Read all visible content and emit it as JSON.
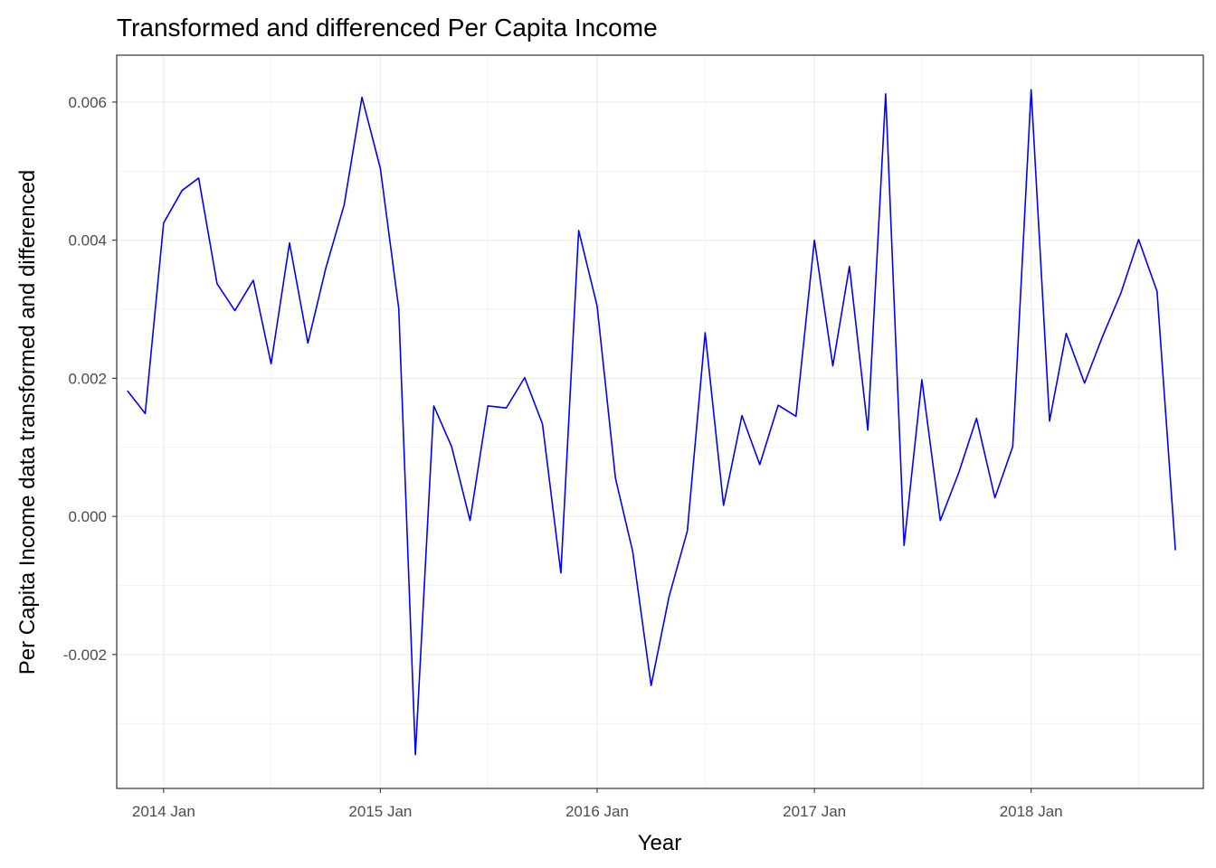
{
  "chart_data": {
    "type": "line",
    "title": "Transformed and differenced Per Capita Income",
    "xlabel": "Year",
    "ylabel": "Per Capita Income data transformed and differenced",
    "x_ticks": [
      "2014 Jan",
      "2015 Jan",
      "2016 Jan",
      "2017 Jan",
      "2018 Jan"
    ],
    "y_ticks": [
      "-0.002",
      "0.000",
      "0.002",
      "0.004",
      "0.006"
    ],
    "xlim": [
      "2013-10-14",
      "2018-10-18"
    ],
    "ylim": [
      -0.00394,
      0.00668
    ],
    "grid": true,
    "legend": "none",
    "line_color": "#0000ff",
    "series": [
      {
        "x": [
          "2013-11",
          "2013-12",
          "2014-01",
          "2014-02",
          "2014-03",
          "2014-04",
          "2014-05",
          "2014-06",
          "2014-07",
          "2014-08",
          "2014-09",
          "2014-10",
          "2014-11",
          "2014-12",
          "2015-01",
          "2015-02",
          "2015-03",
          "2015-04",
          "2015-05",
          "2015-06",
          "2015-07",
          "2015-08",
          "2015-09",
          "2015-10",
          "2015-11",
          "2015-12",
          "2016-01",
          "2016-02",
          "2016-03",
          "2016-04",
          "2016-05",
          "2016-06",
          "2016-07",
          "2016-08",
          "2016-09",
          "2016-10",
          "2016-11",
          "2016-12",
          "2017-01",
          "2017-02",
          "2017-03",
          "2017-04",
          "2017-05",
          "2017-06",
          "2017-07",
          "2017-08",
          "2017-09",
          "2017-10",
          "2017-11",
          "2017-12",
          "2018-01",
          "2018-02",
          "2018-03",
          "2018-04",
          "2018-05",
          "2018-06",
          "2018-07",
          "2018-08",
          "2018-09"
        ],
        "values": [
          0.00182,
          0.00149,
          0.00425,
          0.00472,
          0.0049,
          0.00337,
          0.00298,
          0.00342,
          0.00221,
          0.00396,
          0.00251,
          0.00359,
          0.00451,
          0.00607,
          0.00504,
          0.00301,
          -0.00345,
          0.0016,
          0.00101,
          -6e-05,
          0.0016,
          0.00157,
          0.00201,
          0.00134,
          -0.00082,
          0.00414,
          0.00305,
          0.00055,
          -0.00051,
          -0.00245,
          -0.00117,
          -0.00021,
          0.00266,
          0.00016,
          0.00146,
          0.00075,
          0.00161,
          0.00145,
          0.004,
          0.00218,
          0.00362,
          0.00125,
          0.00612,
          -0.00042,
          0.00198,
          -6e-05,
          0.00063,
          0.00142,
          0.00027,
          0.00101,
          0.00618,
          0.00138,
          0.00265,
          0.00193,
          0.0026,
          0.00323,
          0.00401,
          0.00326,
          -0.00049
        ]
      }
    ]
  }
}
